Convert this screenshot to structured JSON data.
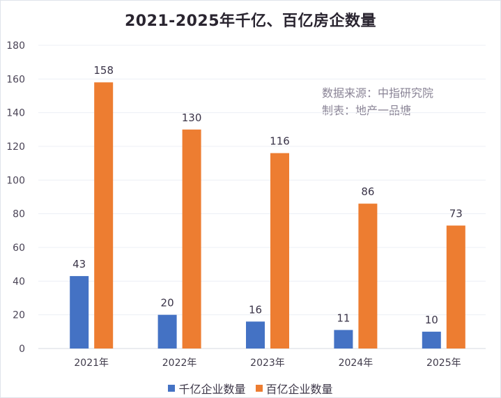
{
  "chart_data": {
    "type": "bar",
    "title": "2021-2025年千亿、百亿房企数量",
    "categories": [
      "2021年",
      "2022年",
      "2023年",
      "2024年",
      "2025年"
    ],
    "series": [
      {
        "name": "千亿企业数量",
        "color": "#4472c4",
        "values": [
          43,
          20,
          16,
          11,
          10
        ]
      },
      {
        "name": "百亿企业数量",
        "color": "#ed7d31",
        "values": [
          158,
          130,
          116,
          86,
          73
        ]
      }
    ],
    "xlabel": "",
    "ylabel": "",
    "ylim": [
      0,
      180
    ],
    "yticks": [
      0,
      20,
      40,
      60,
      80,
      100,
      120,
      140,
      160,
      180
    ],
    "grid": true,
    "legend_position": "bottom",
    "data_labels": true,
    "annotations": [
      "数据来源：中指研究院",
      "制表：地产一品塘"
    ]
  }
}
